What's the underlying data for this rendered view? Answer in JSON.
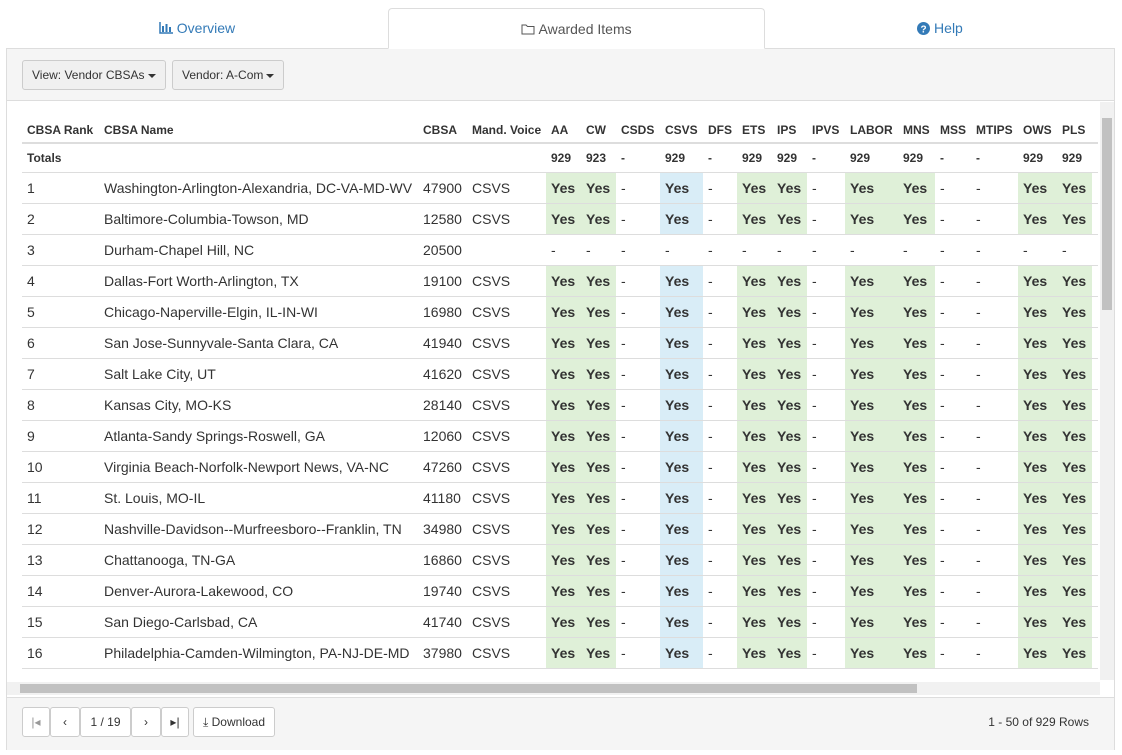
{
  "tabs": [
    "Overview",
    "Awarded Items",
    "Help"
  ],
  "toolbar": {
    "view": "View: Vendor CBSAs",
    "vendor": "Vendor: A-Com"
  },
  "table": {
    "columns": [
      "CBSA Rank",
      "CBSA Name",
      "CBSA",
      "Mand. Voice",
      "AA",
      "CW",
      "CSDS",
      "CSVS",
      "DFS",
      "ETS",
      "IPS",
      "IPVS",
      "LABOR",
      "MNS",
      "MSS",
      "MTIPS",
      "OWS",
      "PLS"
    ],
    "totals": {
      "label": "Totals",
      "values": [
        929,
        923,
        "-",
        929,
        "-",
        929,
        929,
        "-",
        929,
        929,
        "-",
        "-",
        929,
        929
      ]
    },
    "rows": [
      [
        1,
        "Washington-Arlington-Alexandria, DC-VA-MD-WV",
        47900,
        "CSVS",
        "Yes",
        "Yes",
        "-",
        "Yes",
        "-",
        "Yes",
        "Yes",
        "-",
        "Yes",
        "Yes",
        "-",
        "-",
        "Yes",
        "Yes"
      ],
      [
        2,
        "Baltimore-Columbia-Towson, MD",
        12580,
        "CSVS",
        "Yes",
        "Yes",
        "-",
        "Yes",
        "-",
        "Yes",
        "Yes",
        "-",
        "Yes",
        "Yes",
        "-",
        "-",
        "Yes",
        "Yes"
      ],
      [
        3,
        "Durham-Chapel Hill, NC",
        20500,
        null,
        "-",
        "-",
        "-",
        "-",
        "-",
        "-",
        "-",
        "-",
        "-",
        "-",
        "-",
        "-",
        "-",
        "-"
      ],
      [
        4,
        "Dallas-Fort Worth-Arlington, TX",
        19100,
        "CSVS",
        "Yes",
        "Yes",
        "-",
        "Yes",
        "-",
        "Yes",
        "Yes",
        "-",
        "Yes",
        "Yes",
        "-",
        "-",
        "Yes",
        "Yes"
      ],
      [
        5,
        "Chicago-Naperville-Elgin, IL-IN-WI",
        16980,
        "CSVS",
        "Yes",
        "Yes",
        "-",
        "Yes",
        "-",
        "Yes",
        "Yes",
        "-",
        "Yes",
        "Yes",
        "-",
        "-",
        "Yes",
        "Yes"
      ],
      [
        6,
        "San Jose-Sunnyvale-Santa Clara, CA",
        41940,
        "CSVS",
        "Yes",
        "Yes",
        "-",
        "Yes",
        "-",
        "Yes",
        "Yes",
        "-",
        "Yes",
        "Yes",
        "-",
        "-",
        "Yes",
        "Yes"
      ],
      [
        7,
        "Salt Lake City, UT",
        41620,
        "CSVS",
        "Yes",
        "Yes",
        "-",
        "Yes",
        "-",
        "Yes",
        "Yes",
        "-",
        "Yes",
        "Yes",
        "-",
        "-",
        "Yes",
        "Yes"
      ],
      [
        8,
        "Kansas City, MO-KS",
        28140,
        "CSVS",
        "Yes",
        "Yes",
        "-",
        "Yes",
        "-",
        "Yes",
        "Yes",
        "-",
        "Yes",
        "Yes",
        "-",
        "-",
        "Yes",
        "Yes"
      ],
      [
        9,
        "Atlanta-Sandy Springs-Roswell, GA",
        12060,
        "CSVS",
        "Yes",
        "Yes",
        "-",
        "Yes",
        "-",
        "Yes",
        "Yes",
        "-",
        "Yes",
        "Yes",
        "-",
        "-",
        "Yes",
        "Yes"
      ],
      [
        10,
        "Virginia Beach-Norfolk-Newport News, VA-NC",
        47260,
        "CSVS",
        "Yes",
        "Yes",
        "-",
        "Yes",
        "-",
        "Yes",
        "Yes",
        "-",
        "Yes",
        "Yes",
        "-",
        "-",
        "Yes",
        "Yes"
      ],
      [
        11,
        "St. Louis, MO-IL",
        41180,
        "CSVS",
        "Yes",
        "Yes",
        "-",
        "Yes",
        "-",
        "Yes",
        "Yes",
        "-",
        "Yes",
        "Yes",
        "-",
        "-",
        "Yes",
        "Yes"
      ],
      [
        12,
        "Nashville-Davidson--Murfreesboro--Franklin, TN",
        34980,
        "CSVS",
        "Yes",
        "Yes",
        "-",
        "Yes",
        "-",
        "Yes",
        "Yes",
        "-",
        "Yes",
        "Yes",
        "-",
        "-",
        "Yes",
        "Yes"
      ],
      [
        13,
        "Chattanooga, TN-GA",
        16860,
        "CSVS",
        "Yes",
        "Yes",
        "-",
        "Yes",
        "-",
        "Yes",
        "Yes",
        "-",
        "Yes",
        "Yes",
        "-",
        "-",
        "Yes",
        "Yes"
      ],
      [
        14,
        "Denver-Aurora-Lakewood, CO",
        19740,
        "CSVS",
        "Yes",
        "Yes",
        "-",
        "Yes",
        "-",
        "Yes",
        "Yes",
        "-",
        "Yes",
        "Yes",
        "-",
        "-",
        "Yes",
        "Yes"
      ],
      [
        15,
        "San Diego-Carlsbad, CA",
        41740,
        "CSVS",
        "Yes",
        "Yes",
        "-",
        "Yes",
        "-",
        "Yes",
        "Yes",
        "-",
        "Yes",
        "Yes",
        "-",
        "-",
        "Yes",
        "Yes"
      ],
      [
        16,
        "Philadelphia-Camden-Wilmington, PA-NJ-DE-MD",
        37980,
        "CSVS",
        "Yes",
        "Yes",
        "-",
        "Yes",
        "-",
        "Yes",
        "Yes",
        "-",
        "Yes",
        "Yes",
        "-",
        "-",
        "Yes",
        "Yes"
      ]
    ]
  },
  "footer": {
    "page": "1 / 19",
    "download": "Download",
    "status": "1 - 50 of 929 Rows"
  }
}
